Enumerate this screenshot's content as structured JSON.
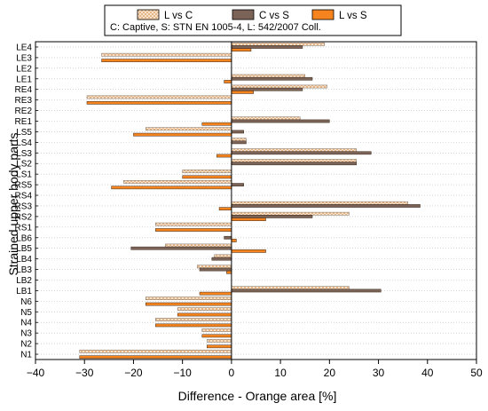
{
  "chart_data": {
    "type": "bar",
    "orientation": "horizontal",
    "xlabel": "Difference - Orange area [%]",
    "ylabel": "Strained upper body parts",
    "xlim": [
      -40,
      50
    ],
    "xticks": [
      -40,
      -30,
      -20,
      -10,
      0,
      10,
      20,
      30,
      40,
      50
    ],
    "grid": "horizontal dotted",
    "legend_placement": "top",
    "note": "C: Captive, S: STN EN 1005-4, L: 542/2007 Coll.",
    "categories": [
      "LE4",
      "LE3",
      "LE2",
      "LE1",
      "RE4",
      "RE3",
      "RE2",
      "RE1",
      "LS5",
      "LS4",
      "LS3",
      "LS2",
      "LS1",
      "RS5",
      "RS4",
      "RS3",
      "RS2",
      "RS1",
      "LB6",
      "LB5",
      "LB4",
      "LB3",
      "LB2",
      "LB1",
      "N6",
      "N5",
      "N4",
      "N3",
      "N2",
      "N1"
    ],
    "series": [
      {
        "name": "L vs C",
        "color": "#f7dcc4",
        "pattern": "crosshatch",
        "values": [
          19,
          -26.5,
          0,
          15,
          19.5,
          -29.5,
          0,
          14,
          -17.5,
          3,
          25.5,
          25.5,
          -10,
          -22,
          0,
          36,
          24,
          -15.5,
          0,
          -13.5,
          -3.5,
          -7,
          0,
          24,
          -17.5,
          -11,
          -15.5,
          -6,
          -5,
          -31
        ]
      },
      {
        "name": "C vs S",
        "color": "#7b6457",
        "pattern": "solid",
        "values": [
          14.5,
          0,
          0,
          16.5,
          14.5,
          0,
          0,
          20,
          2.5,
          3,
          28.5,
          25.5,
          0,
          2.5,
          0,
          38.5,
          16.5,
          0,
          -1.5,
          -20.5,
          -4,
          -6.5,
          0,
          30.5,
          0,
          0,
          0,
          0,
          0,
          0
        ]
      },
      {
        "name": "L vs S",
        "color": "#f5841f",
        "pattern": "solid",
        "values": [
          4,
          -26.5,
          0,
          -1.5,
          4.5,
          -29.5,
          0,
          -6,
          -20,
          0,
          -3,
          0,
          -10,
          -24.5,
          0,
          -2.5,
          7,
          -15.5,
          1,
          7,
          0,
          -1,
          0,
          -6.5,
          -17.5,
          -11,
          -15.5,
          -6,
          -5,
          -31
        ]
      }
    ]
  }
}
